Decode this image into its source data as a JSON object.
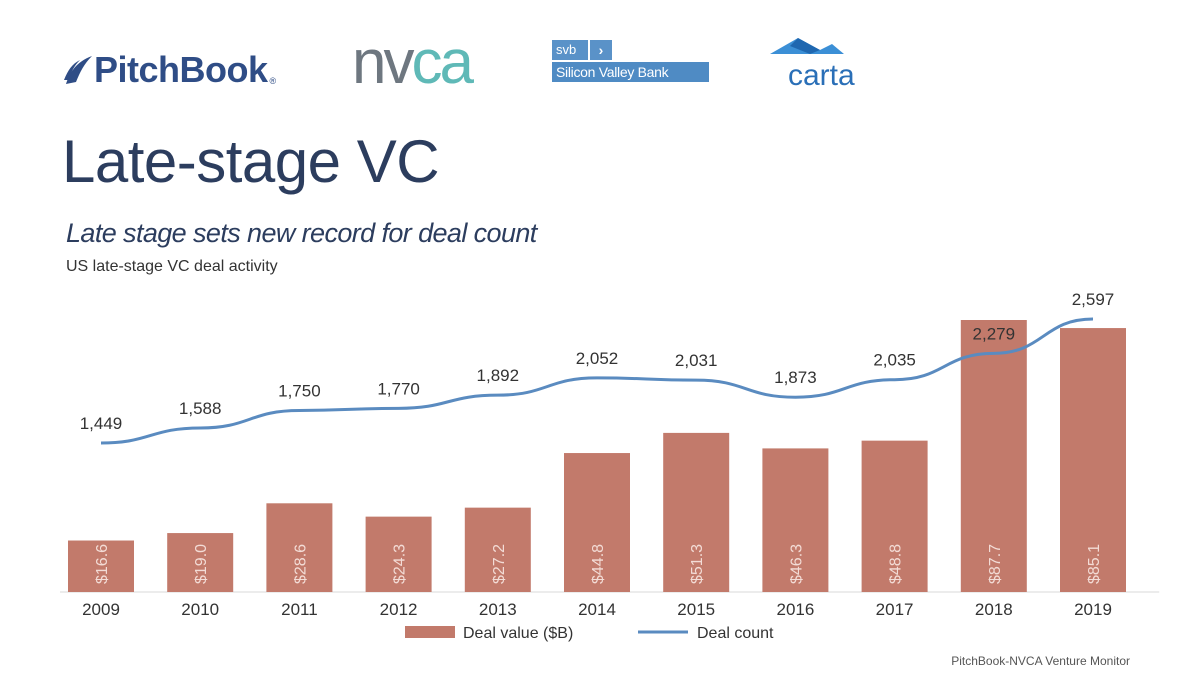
{
  "logos": {
    "pitchbook": "PitchBook",
    "nvca_prefix": "nv",
    "nvca_suffix": "ca",
    "svb_short": "svb",
    "svb_arrow": "›",
    "svb_full": "Silicon Valley Bank",
    "carta": "carta"
  },
  "header": {
    "title": "Late-stage VC",
    "subtitle": "Late stage sets new record for deal count",
    "caption": "US late-stage VC deal activity"
  },
  "source": "PitchBook-NVCA Venture Monitor",
  "colors": {
    "bar": "#c27a6b",
    "line": "#5a8bc0",
    "title": "#2c3d5e"
  },
  "chart_data": {
    "type": "bar",
    "categories": [
      "2009",
      "2010",
      "2011",
      "2012",
      "2013",
      "2014",
      "2015",
      "2016",
      "2017",
      "2018",
      "2019"
    ],
    "series": [
      {
        "name": "Deal value ($B)",
        "type": "bar",
        "values": [
          16.6,
          19.0,
          28.6,
          24.3,
          27.2,
          44.8,
          51.3,
          46.3,
          48.8,
          87.7,
          85.1
        ],
        "labels": [
          "$16.6",
          "$19.0",
          "$28.6",
          "$24.3",
          "$27.2",
          "$44.8",
          "$51.3",
          "$46.3",
          "$48.8",
          "$87.7",
          "$85.1"
        ]
      },
      {
        "name": "Deal count",
        "type": "line",
        "values": [
          1449,
          1588,
          1750,
          1770,
          1892,
          2052,
          2031,
          1873,
          2035,
          2279,
          2597
        ],
        "labels": [
          "1,449",
          "1,588",
          "1,750",
          "1,770",
          "1,892",
          "2,052",
          "2,031",
          "1,873",
          "2,035",
          "2,279",
          "2,597"
        ]
      }
    ],
    "legend": [
      "Deal value ($B)",
      "Deal count"
    ],
    "legend_position": "bottom",
    "grid": false
  }
}
